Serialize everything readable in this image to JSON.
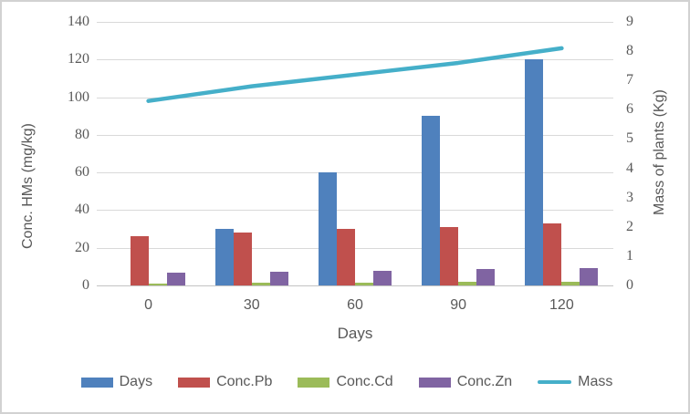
{
  "chart_data": {
    "type": "bar+line combo",
    "title": "",
    "xlabel": "Days",
    "ylabel_left": "Conc. HMs (mg/kg)",
    "ylabel_right": "Mass of plants (Kg)",
    "categories": [
      "0",
      "30",
      "60",
      "90",
      "120"
    ],
    "ylim_left": [
      0,
      140
    ],
    "ylim_right": [
      0,
      9
    ],
    "yticks_left": [
      "0",
      "20",
      "40",
      "60",
      "80",
      "100",
      "120",
      "140"
    ],
    "yticks_right": [
      "0",
      "1",
      "2",
      "3",
      "4",
      "5",
      "6",
      "7",
      "8",
      "9"
    ],
    "grid": "horizontal",
    "legend_position": "bottom",
    "bar_series": [
      {
        "name": "Days",
        "color": "#4F81BD",
        "axis": "left",
        "values": [
          0,
          30,
          60,
          90,
          120
        ]
      },
      {
        "name": "Conc.Pb",
        "color": "#C0504D",
        "axis": "left",
        "values": [
          26,
          28,
          30,
          31,
          33
        ]
      },
      {
        "name": "Conc.Cd",
        "color": "#9BBB59",
        "axis": "left",
        "values": [
          1,
          1.5,
          1.5,
          2,
          2
        ]
      },
      {
        "name": "Conc.Zn",
        "color": "#8064A2",
        "axis": "left",
        "values": [
          7,
          7.5,
          8,
          8.5,
          9
        ]
      }
    ],
    "line_series": [
      {
        "name": "Mass",
        "color": "#45AFC9",
        "axis": "right",
        "values": [
          6.3,
          6.8,
          7.2,
          7.6,
          8.1
        ]
      }
    ],
    "colors": {
      "gridline": "#d9d9d9",
      "axis_line": "#c3c3c3",
      "tick_text": "#595959"
    }
  }
}
